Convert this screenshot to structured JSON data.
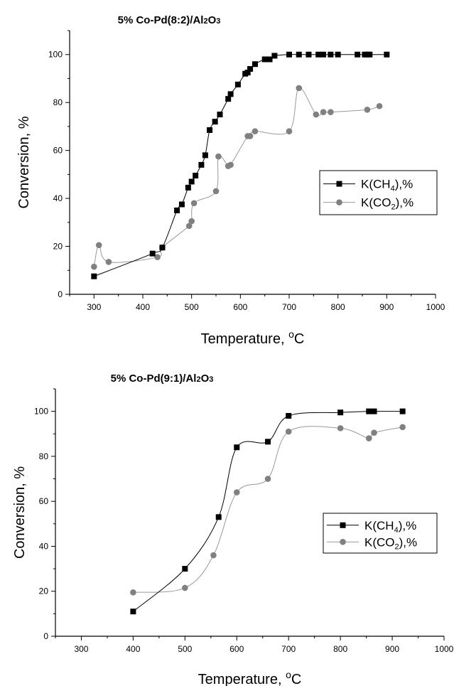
{
  "chart_data": [
    {
      "type": "scatter",
      "title": "5% Co-Pd(8:2)/Al2O3",
      "xlabel": "Temperature, °C",
      "ylabel": "Conversion, %",
      "xlim": [
        250,
        1000
      ],
      "ylim": [
        0,
        110
      ],
      "xticks": [
        "300",
        "400",
        "500",
        "600",
        "700",
        "800",
        "900",
        "1000"
      ],
      "yticks": [
        "0",
        "20",
        "40",
        "60",
        "80",
        "100"
      ],
      "legend_position": "center-right",
      "series": [
        {
          "name": "K(CH4),%",
          "marker": "square",
          "color": "#000000",
          "line_color": "#000000",
          "x": [
            300,
            420,
            440,
            470,
            480,
            493,
            500,
            508,
            520,
            528,
            537,
            548,
            558,
            575,
            580,
            595,
            610,
            615,
            620,
            630,
            650,
            660,
            670,
            700,
            720,
            740,
            760,
            770,
            785,
            800,
            840,
            855,
            860,
            865,
            900
          ],
          "y": [
            7.5,
            17,
            19.5,
            35,
            37.5,
            44.5,
            47,
            49.5,
            54,
            58,
            68.5,
            72,
            75,
            81.5,
            83.5,
            87.5,
            92,
            92.5,
            94,
            96,
            98,
            98,
            99.5,
            100,
            100,
            100,
            100,
            100,
            100,
            100,
            100,
            100,
            100,
            100,
            100
          ]
        },
        {
          "name": "K(CO2),%",
          "marker": "circle",
          "color": "#808080",
          "line_color": "#999999",
          "x": [
            300,
            310,
            330,
            430,
            440,
            495,
            500,
            505,
            550,
            555,
            575,
            580,
            615,
            620,
            630,
            700,
            720,
            755,
            770,
            785,
            860,
            885
          ],
          "y": [
            11.5,
            20.5,
            13.5,
            15.5,
            19.5,
            28.5,
            30.5,
            38,
            43,
            57.5,
            53.5,
            54,
            66,
            66,
            68,
            68,
            86,
            75,
            76,
            76,
            77,
            78.5
          ]
        }
      ]
    },
    {
      "type": "scatter",
      "title": "5% Co-Pd(9:1)/Al2O3",
      "xlabel": "Temperature, °C",
      "ylabel": "Conversion, %",
      "xlim": [
        250,
        1000
      ],
      "ylim": [
        0,
        110
      ],
      "xticks": [
        "300",
        "400",
        "500",
        "600",
        "700",
        "800",
        "900",
        "1000"
      ],
      "yticks": [
        "0",
        "20",
        "40",
        "60",
        "80",
        "100"
      ],
      "legend_position": "lower-right",
      "series": [
        {
          "name": "K(CH4),%",
          "marker": "square",
          "color": "#000000",
          "line_color": "#000000",
          "x": [
            400,
            500,
            565,
            600,
            660,
            700,
            800,
            855,
            865,
            920
          ],
          "y": [
            11,
            30,
            53,
            84,
            86.5,
            98,
            99.5,
            100,
            100,
            100
          ]
        },
        {
          "name": "K(CO2),%",
          "marker": "circle",
          "color": "#808080",
          "line_color": "#999999",
          "x": [
            400,
            500,
            555,
            600,
            660,
            700,
            800,
            855,
            865,
            920
          ],
          "y": [
            19.5,
            21.5,
            36,
            64,
            70,
            91,
            92.5,
            88,
            90.5,
            93
          ]
        }
      ]
    }
  ]
}
